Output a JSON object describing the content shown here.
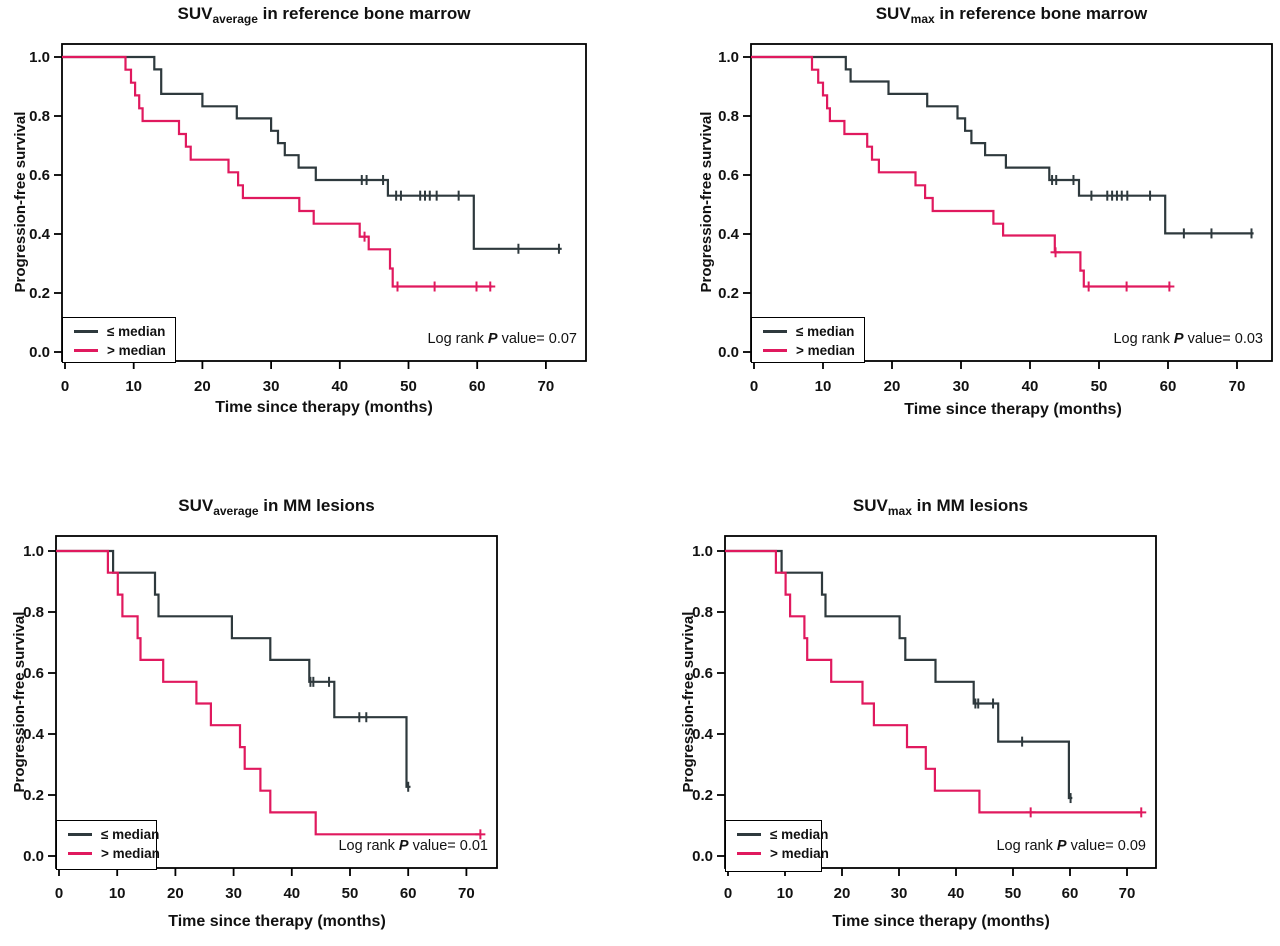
{
  "figure": {
    "description": "Kaplan-Meier progression-free survival curves, four panels",
    "accent_colors": {
      "le_median_line": "#2e393d",
      "gt_median_line": "#e0195e"
    }
  },
  "chart_data": [
    {
      "type": "line",
      "subtype": "kaplan-meier-step",
      "title_prefix": "SUV",
      "title_sub": "average",
      "title_rest": " in reference bone marrow",
      "xlabel": "Time since therapy (months)",
      "ylabel": "Progression-free survival",
      "log_rank_prefix": "Log rank",
      "p_symbol": "P",
      "log_rank_suffix": "value= 0.07",
      "xlim": [
        0,
        75
      ],
      "ylim": [
        0,
        1.05
      ],
      "x_ticks": [
        0,
        10,
        20,
        30,
        40,
        50,
        60,
        70
      ],
      "x_tick_labels": [
        "0",
        "10",
        "20",
        "30",
        "40",
        "50",
        "60",
        "70"
      ],
      "y_ticks": [
        0,
        0.2,
        0.4,
        0.6,
        0.8,
        1.0
      ],
      "y_tick_labels": [
        "0.0",
        "0.2",
        "0.4",
        "0.6",
        "0.8",
        "1.0"
      ],
      "legend_position": "bottom-left",
      "series": [
        {
          "name": "≤ median",
          "color": "#2e393d",
          "marker": "tick",
          "steps": [
            [
              13,
              0.958
            ],
            [
              14,
              0.875
            ],
            [
              20,
              0.833
            ],
            [
              25,
              0.792
            ],
            [
              30,
              0.75
            ],
            [
              31,
              0.708
            ],
            [
              32,
              0.667
            ],
            [
              34,
              0.625
            ],
            [
              36.5,
              0.583
            ],
            [
              47,
              0.53
            ],
            [
              59.5,
              0.35
            ]
          ],
          "end": 72.3,
          "censors": [
            [
              43.2,
              0.583
            ],
            [
              43.9,
              0.583
            ],
            [
              46.3,
              0.583
            ],
            [
              48.2,
              0.53
            ],
            [
              48.9,
              0.53
            ],
            [
              51.7,
              0.53
            ],
            [
              52.4,
              0.53
            ],
            [
              53.1,
              0.53
            ],
            [
              54.1,
              0.53
            ],
            [
              57.3,
              0.53
            ],
            [
              66,
              0.35
            ],
            [
              71.9,
              0.35
            ]
          ]
        },
        {
          "name": "> median",
          "color": "#e0195e",
          "marker": "plus",
          "steps": [
            [
              8.8,
              0.957
            ],
            [
              9.6,
              0.913
            ],
            [
              10.2,
              0.87
            ],
            [
              10.8,
              0.826
            ],
            [
              11.3,
              0.783
            ],
            [
              16.6,
              0.739
            ],
            [
              17.6,
              0.696
            ],
            [
              18.3,
              0.652
            ],
            [
              23.8,
              0.609
            ],
            [
              25.2,
              0.565
            ],
            [
              25.9,
              0.522
            ],
            [
              34.1,
              0.478
            ],
            [
              36.2,
              0.435
            ],
            [
              42.9,
              0.391
            ],
            [
              44.2,
              0.348
            ],
            [
              47.3,
              0.283
            ],
            [
              47.7,
              0.222
            ]
          ],
          "end": 62.2,
          "censors": [
            [
              43.6,
              0.391
            ],
            [
              48.4,
              0.222
            ],
            [
              53.8,
              0.222
            ],
            [
              59.9,
              0.222
            ],
            [
              61.9,
              0.222
            ]
          ]
        }
      ]
    },
    {
      "type": "line",
      "subtype": "kaplan-meier-step",
      "title_prefix": "SUV",
      "title_sub": "max",
      "title_rest": " in reference bone marrow",
      "xlabel": "Time since therapy (months)",
      "ylabel": "Progression-free survival",
      "log_rank_prefix": "Log rank",
      "p_symbol": "P",
      "log_rank_suffix": "value= 0.03",
      "xlim": [
        0,
        75
      ],
      "ylim": [
        0,
        1.05
      ],
      "x_ticks": [
        0,
        10,
        20,
        30,
        40,
        50,
        60,
        70
      ],
      "x_tick_labels": [
        "0",
        "10",
        "20",
        "30",
        "40",
        "50",
        "60",
        "70"
      ],
      "y_ticks": [
        0,
        0.2,
        0.4,
        0.6,
        0.8,
        1.0
      ],
      "y_tick_labels": [
        "0.0",
        "0.2",
        "0.4",
        "0.6",
        "0.8",
        "1.0"
      ],
      "legend_position": "bottom-left",
      "series": [
        {
          "name": "≤ median",
          "color": "#2e393d",
          "marker": "tick",
          "steps": [
            [
              13.3,
              0.958
            ],
            [
              14,
              0.917
            ],
            [
              19.5,
              0.875
            ],
            [
              25.1,
              0.833
            ],
            [
              29.5,
              0.792
            ],
            [
              30.6,
              0.75
            ],
            [
              31.5,
              0.708
            ],
            [
              33.5,
              0.667
            ],
            [
              36.5,
              0.625
            ],
            [
              42.8,
              0.583
            ],
            [
              47.1,
              0.53
            ],
            [
              59.6,
              0.402
            ]
          ],
          "end": 72.4,
          "censors": [
            [
              43.2,
              0.583
            ],
            [
              43.8,
              0.583
            ],
            [
              46.3,
              0.583
            ],
            [
              48.9,
              0.53
            ],
            [
              51.2,
              0.53
            ],
            [
              51.9,
              0.53
            ],
            [
              52.6,
              0.53
            ],
            [
              53.3,
              0.53
            ],
            [
              54.1,
              0.53
            ],
            [
              57.4,
              0.53
            ],
            [
              62.3,
              0.402
            ],
            [
              66.3,
              0.402
            ],
            [
              72.1,
              0.402
            ]
          ]
        },
        {
          "name": "> median",
          "color": "#e0195e",
          "marker": "plus",
          "steps": [
            [
              8.4,
              0.957
            ],
            [
              9.3,
              0.913
            ],
            [
              10,
              0.87
            ],
            [
              10.6,
              0.826
            ],
            [
              11,
              0.783
            ],
            [
              13.1,
              0.739
            ],
            [
              16.4,
              0.696
            ],
            [
              17.1,
              0.652
            ],
            [
              18.1,
              0.609
            ],
            [
              23.4,
              0.565
            ],
            [
              24.8,
              0.522
            ],
            [
              25.9,
              0.478
            ],
            [
              34.7,
              0.435
            ],
            [
              36.1,
              0.395
            ],
            [
              43.6,
              0.338
            ],
            [
              47.3,
              0.276
            ],
            [
              47.8,
              0.222
            ]
          ],
          "end": 60.4,
          "censors": [
            [
              43.7,
              0.338
            ],
            [
              48.5,
              0.222
            ],
            [
              54,
              0.222
            ],
            [
              60.2,
              0.222
            ]
          ]
        }
      ]
    },
    {
      "type": "line",
      "subtype": "kaplan-meier-step",
      "title_prefix": "SUV",
      "title_sub": "average",
      "title_rest": " in MM lesions",
      "xlabel": "Time since therapy (months)",
      "ylabel": "Progression-free survival",
      "log_rank_prefix": "Log rank",
      "p_symbol": "P",
      "log_rank_suffix": "value= 0.01",
      "xlim": [
        0,
        75
      ],
      "ylim": [
        0,
        1.05
      ],
      "x_ticks": [
        0,
        10,
        20,
        30,
        40,
        50,
        60,
        70
      ],
      "x_tick_labels": [
        "0",
        "10",
        "20",
        "30",
        "40",
        "50",
        "60",
        "70"
      ],
      "y_ticks": [
        0,
        0.2,
        0.4,
        0.6,
        0.8,
        1.0
      ],
      "y_tick_labels": [
        "0.0",
        "0.2",
        "0.4",
        "0.6",
        "0.8",
        "1.0"
      ],
      "legend_position": "bottom-left",
      "series": [
        {
          "name": "≤ median",
          "color": "#2e393d",
          "marker": "tick",
          "steps": [
            [
              9.3,
              0.929
            ],
            [
              16.5,
              0.857
            ],
            [
              17.1,
              0.786
            ],
            [
              29.7,
              0.714
            ],
            [
              36.3,
              0.643
            ],
            [
              43,
              0.571
            ],
            [
              47.3,
              0.455
            ],
            [
              59.7,
              0.227
            ]
          ],
          "end": 60.4,
          "censors": [
            [
              43.2,
              0.571
            ],
            [
              43.7,
              0.571
            ],
            [
              46.4,
              0.571
            ],
            [
              51.6,
              0.455
            ],
            [
              52.8,
              0.455
            ],
            [
              60,
              0.227
            ]
          ]
        },
        {
          "name": "> median",
          "color": "#e0195e",
          "marker": "plus",
          "steps": [
            [
              8.4,
              0.929
            ],
            [
              10.1,
              0.857
            ],
            [
              10.9,
              0.786
            ],
            [
              13.5,
              0.714
            ],
            [
              14,
              0.643
            ],
            [
              17.9,
              0.571
            ],
            [
              23.6,
              0.5
            ],
            [
              26.1,
              0.429
            ],
            [
              31.1,
              0.357
            ],
            [
              31.9,
              0.286
            ],
            [
              34.6,
              0.214
            ],
            [
              36.3,
              0.143
            ],
            [
              44.1,
              0.071
            ]
          ],
          "end": 72.4,
          "censors": [
            [
              72.4,
              0.071
            ]
          ]
        }
      ]
    },
    {
      "type": "line",
      "subtype": "kaplan-meier-step",
      "title_prefix": "SUV",
      "title_sub": "max",
      "title_rest": " in MM lesions",
      "xlabel": "Time since therapy (months)",
      "ylabel": "Progression-free survival",
      "log_rank_prefix": "Log rank",
      "p_symbol": "P",
      "log_rank_suffix": "value= 0.09",
      "xlim": [
        0,
        75
      ],
      "ylim": [
        0,
        1.05
      ],
      "x_ticks": [
        0,
        10,
        20,
        30,
        40,
        50,
        60,
        70
      ],
      "x_tick_labels": [
        "0",
        "10",
        "20",
        "30",
        "40",
        "50",
        "60",
        "70"
      ],
      "y_ticks": [
        0,
        0.2,
        0.4,
        0.6,
        0.8,
        1.0
      ],
      "y_tick_labels": [
        "0.0",
        "0.2",
        "0.4",
        "0.6",
        "0.8",
        "1.0"
      ],
      "legend_position": "bottom-left",
      "series": [
        {
          "name": "≤ median",
          "color": "#2e393d",
          "marker": "tick",
          "steps": [
            [
              9.4,
              0.929
            ],
            [
              16.5,
              0.857
            ],
            [
              17.1,
              0.786
            ],
            [
              30.1,
              0.714
            ],
            [
              31.1,
              0.643
            ],
            [
              36.4,
              0.571
            ],
            [
              43.1,
              0.5
            ],
            [
              47.4,
              0.375
            ],
            [
              59.8,
              0.19
            ]
          ],
          "end": 60.4,
          "censors": [
            [
              43.4,
              0.5
            ],
            [
              43.9,
              0.5
            ],
            [
              46.5,
              0.5
            ],
            [
              51.6,
              0.375
            ],
            [
              60.1,
              0.19
            ]
          ]
        },
        {
          "name": "> median",
          "color": "#e0195e",
          "marker": "plus",
          "steps": [
            [
              8.4,
              0.929
            ],
            [
              10.1,
              0.857
            ],
            [
              10.9,
              0.786
            ],
            [
              13.4,
              0.714
            ],
            [
              13.9,
              0.643
            ],
            [
              18.1,
              0.571
            ],
            [
              23.6,
              0.5
            ],
            [
              25.6,
              0.429
            ],
            [
              31.4,
              0.357
            ],
            [
              34.7,
              0.286
            ],
            [
              36.3,
              0.214
            ],
            [
              44.1,
              0.143
            ]
          ],
          "end": 72.5,
          "censors": [
            [
              53.1,
              0.143
            ],
            [
              72.5,
              0.143
            ]
          ]
        }
      ]
    }
  ]
}
